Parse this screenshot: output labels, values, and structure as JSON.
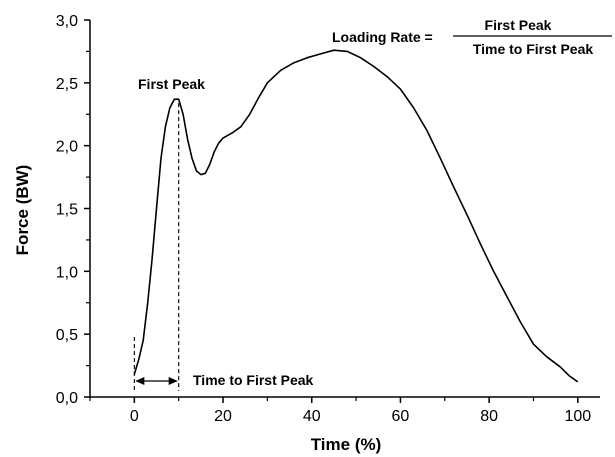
{
  "chart_data": {
    "type": "line",
    "xlabel": "Time (%)",
    "ylabel": "Force (BW)",
    "xlim": [
      -10,
      105
    ],
    "ylim": [
      0,
      3.0
    ],
    "x_ticks": [
      0,
      20,
      40,
      60,
      80,
      100
    ],
    "x_tick_labels": [
      "0",
      "20",
      "40",
      "60",
      "80",
      "100"
    ],
    "y_ticks": [
      0,
      0.5,
      1.0,
      1.5,
      2.0,
      2.5,
      3.0
    ],
    "y_tick_labels": [
      "0,0",
      "0,5",
      "1,0",
      "1,5",
      "2,0",
      "2,5",
      "3,0"
    ],
    "grid": false,
    "series": [
      {
        "x": [
          0,
          1,
          2,
          3,
          4,
          5,
          6,
          7,
          8,
          9,
          10,
          11,
          12,
          13,
          14,
          15,
          16,
          17,
          18,
          19,
          20,
          22,
          24,
          26,
          28,
          30,
          33,
          36,
          39,
          42,
          45,
          48,
          51,
          54,
          57,
          60,
          63,
          66,
          69,
          72,
          75,
          78,
          81,
          84,
          87,
          90,
          93,
          96,
          98,
          100
        ],
        "y": [
          0.18,
          0.3,
          0.45,
          0.75,
          1.1,
          1.5,
          1.9,
          2.15,
          2.3,
          2.37,
          2.37,
          2.25,
          2.05,
          1.9,
          1.8,
          1.77,
          1.78,
          1.85,
          1.95,
          2.02,
          2.06,
          2.1,
          2.15,
          2.25,
          2.38,
          2.5,
          2.6,
          2.66,
          2.7,
          2.73,
          2.76,
          2.75,
          2.7,
          2.63,
          2.55,
          2.45,
          2.3,
          2.12,
          1.9,
          1.67,
          1.45,
          1.22,
          1.0,
          0.8,
          0.6,
          0.42,
          0.32,
          0.24,
          0.17,
          0.12
        ]
      }
    ],
    "annotations": {
      "first_peak": "First Peak",
      "time_to_first_peak": "Time to First Peak",
      "loading_rate_label": "Loading Rate =",
      "loading_rate_numerator": "First Peak",
      "loading_rate_denominator": "Time to First Peak"
    },
    "first_peak_x": 10,
    "first_peak_y": 2.37
  }
}
